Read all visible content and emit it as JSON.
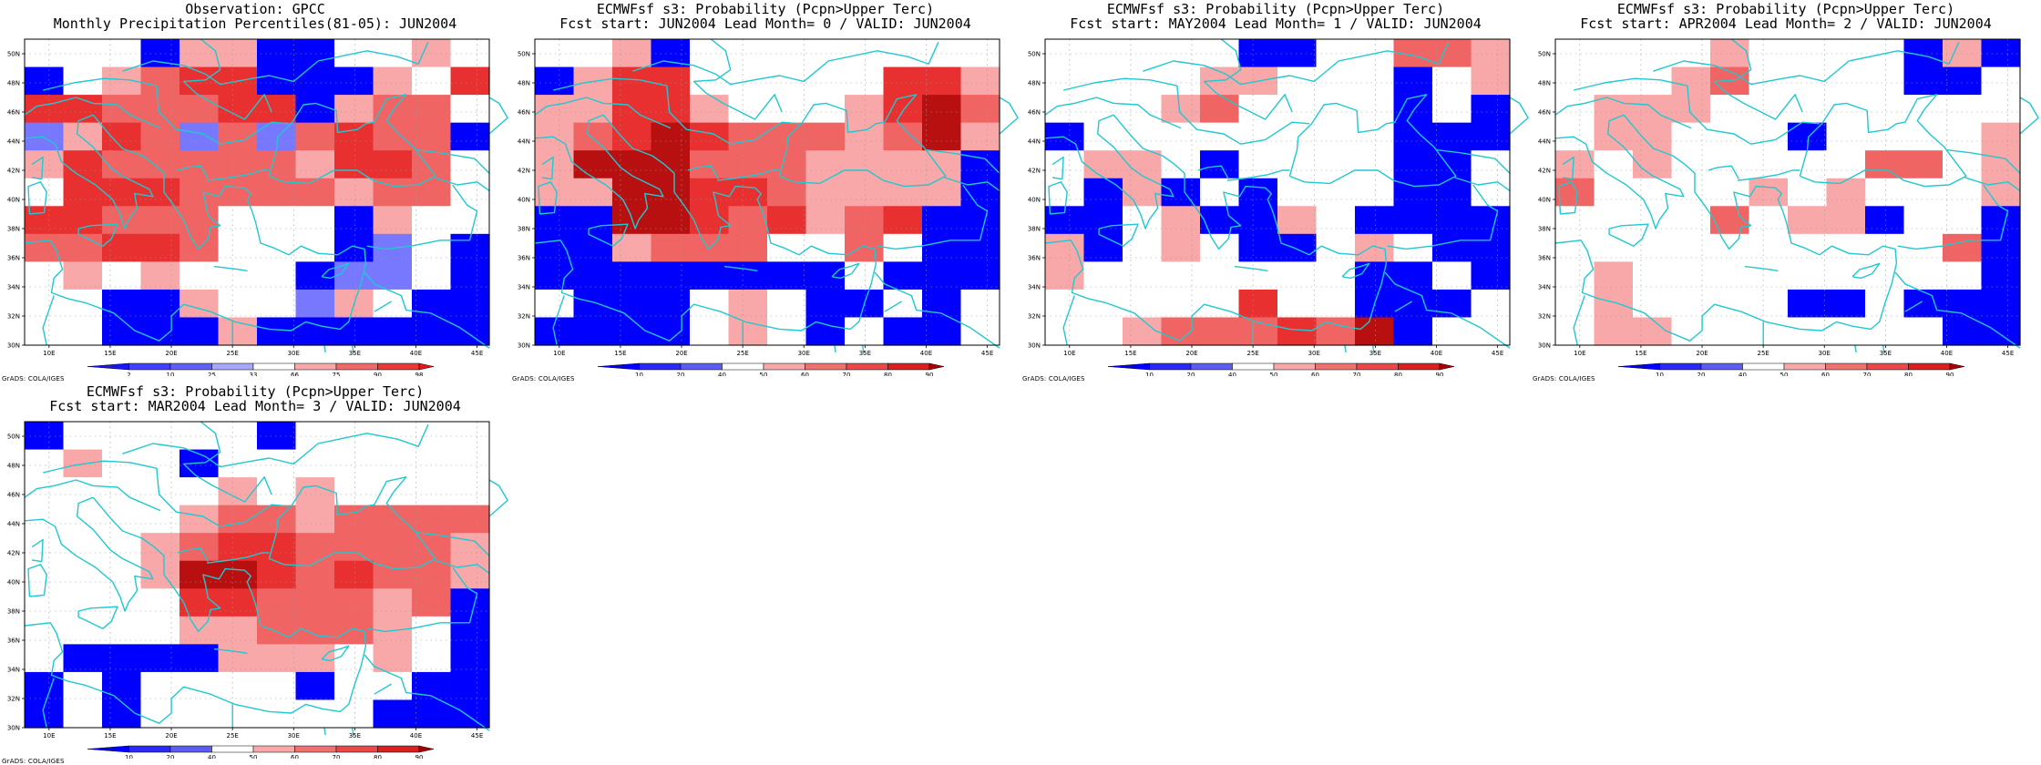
{
  "panels": [
    {
      "title1": "Observation: GPCC",
      "title2": "Monthly Precipitation Percentiles(81-05): JUN2004",
      "colorbar": [
        {
          "color": "#1818f0",
          "label": "2"
        },
        {
          "color": "#4040ff",
          "label": "10"
        },
        {
          "color": "#6060f8",
          "label": "25"
        },
        {
          "color": "#a6a6fa",
          "label": "33"
        },
        {
          "color": "#ffffff",
          "label": "66"
        },
        {
          "color": "#f8a8a8",
          "label": "75"
        },
        {
          "color": "#f06868",
          "label": "90"
        },
        {
          "color": "#e83838",
          "label": "98"
        },
        {
          "color": "#e81818",
          "label": ""
        }
      ],
      "grid": [
        "WWWBLLBBWWLW",
        "BWLRDDBBBLWD",
        "DDRRRDDBLRRW",
        "MLDRMRMRDRRB",
        "LDRRRRRLDDRW",
        "WDDDRRRRLRRW",
        "DDRRRWWWBLWW",
        "RRDDRWWWBMWB",
        "WLWLWWWBMMWB",
        "WWBBLWWMLWBB",
        "WWBBBLBBBBBB"
      ],
      "credit": "GrADS: COLA/IGES"
    },
    {
      "title1": "ECMWFsf s3: Probability (Pcpn>Upper Terc)",
      "title2": "Fcst start: JUN2004  Lead Month= 0 / VALID: JUN2004",
      "colorbar": [
        {
          "color": "#0000ff",
          "label": "10"
        },
        {
          "color": "#2a2af8",
          "label": "20"
        },
        {
          "color": "#5c5cf0",
          "label": "40"
        },
        {
          "color": "#ffffff",
          "label": "50"
        },
        {
          "color": "#f8a8a8",
          "label": "60"
        },
        {
          "color": "#f07070",
          "label": "70"
        },
        {
          "color": "#e84848",
          "label": "80"
        },
        {
          "color": "#d82020",
          "label": "90"
        },
        {
          "color": "#a80000",
          "label": ""
        }
      ],
      "grid": [
        "WWLBWWWWWWWW",
        "BLDDWWWWWDDL",
        "LLDDLWWWLDFR",
        "LRDFDRRRLRFL",
        "LFFFRRRLLLLB",
        "LLFFDDRLLLLB",
        "BBFFDRDLRDBB",
        "BBLRRRWWRWBB",
        "BBBBBBBBWBBB",
        "WBBBWLWBBWBW",
        "BBBBWLWBWBBW"
      ],
      "credit": "GrADS: COLA/IGES"
    },
    {
      "title1": "ECMWFsf s3: Probability (Pcpn>Upper Terc)",
      "title2": "Fcst start: MAY2004  Lead Month= 1 / VALID: JUN2004",
      "colorbar": [
        {
          "color": "#0000ff",
          "label": "10"
        },
        {
          "color": "#2a2af8",
          "label": "20"
        },
        {
          "color": "#5c5cf0",
          "label": "40"
        },
        {
          "color": "#ffffff",
          "label": "50"
        },
        {
          "color": "#f8a8a8",
          "label": "60"
        },
        {
          "color": "#f07070",
          "label": "70"
        },
        {
          "color": "#e84848",
          "label": "80"
        },
        {
          "color": "#d82020",
          "label": "90"
        },
        {
          "color": "#a80000",
          "label": ""
        }
      ],
      "grid": [
        "WWWWWBBWWRRL",
        "WWWWLLWWWBWL",
        "WWWLRWWWWBWB",
        "BWWWWWWWWBBB",
        "WLLWBWWWWBBW",
        "WBLBWBWWWBBW",
        "BBWLBBLWBBBB",
        "LBWLWBBWLWBB",
        "LWWWWWWWBBWB",
        "WWWWWDWWBBBW",
        "WWLRRRDRFBWW"
      ],
      "credit": "GrADS: COLA/IGES"
    },
    {
      "title1": "ECMWFsf s3: Probability (Pcpn>Upper Terc)",
      "title2": "Fcst start: APR2004  Lead Month= 2 / VALID: JUN2004",
      "colorbar": [
        {
          "color": "#0000ff",
          "label": "10"
        },
        {
          "color": "#2a2af8",
          "label": "20"
        },
        {
          "color": "#5c5cf0",
          "label": "40"
        },
        {
          "color": "#ffffff",
          "label": "50"
        },
        {
          "color": "#f8a8a8",
          "label": "60"
        },
        {
          "color": "#f07070",
          "label": "70"
        },
        {
          "color": "#e84848",
          "label": "80"
        },
        {
          "color": "#d82020",
          "label": "90"
        },
        {
          "color": "#a80000",
          "label": ""
        }
      ],
      "grid": [
        "WWWWLWWWWBLB",
        "WWWLRWWWWBBW",
        "WLLLWWWWWWWW",
        "WLLWWWBWWWWL",
        "LWLWWWWWRRWL",
        "RWWWWLWLWWWL",
        "WWWWRWLLBWWB",
        "WWWWWWWWWWRB",
        "WLWWWWWWWWWB",
        "WLWWWWBBWBBB",
        "WLLWWWWWWWBB"
      ],
      "credit": "GrADS: COLA/IGES"
    },
    {
      "title1": "ECMWFsf s3: Probability (Pcpn>Upper Terc)",
      "title2": "Fcst start: MAR2004  Lead Month= 3 / VALID: JUN2004",
      "colorbar": [
        {
          "color": "#0000ff",
          "label": "10"
        },
        {
          "color": "#2a2af8",
          "label": "20"
        },
        {
          "color": "#5c5cf0",
          "label": "40"
        },
        {
          "color": "#ffffff",
          "label": "50"
        },
        {
          "color": "#f8a8a8",
          "label": "60"
        },
        {
          "color": "#f07070",
          "label": "70"
        },
        {
          "color": "#e84848",
          "label": "80"
        },
        {
          "color": "#d82020",
          "label": "90"
        },
        {
          "color": "#a80000",
          "label": ""
        }
      ],
      "grid": [
        "BWWWWWBWWWWW",
        "WLWWBWWWWWWW",
        "WWWWWLWLWWWW",
        "WWWWLRRLRRRR",
        "WWWLRDDRRRRL",
        "WWWLFFDRDRRL",
        "WWWWDDRRRLRB",
        "WWWWLLRRRLWB",
        "WBBBBLLLWLWB",
        "BWBWWWWBWWBB",
        "BWBWWWWWWBBB"
      ],
      "credit": "GrADS: COLA/IGES"
    }
  ],
  "map_colors": {
    "W": "#ffffff",
    "B": "#0000ff",
    "M": "#7878ff",
    "L": "#f8a8a8",
    "R": "#f06464",
    "D": "#e83030",
    "F": "#b81010"
  },
  "coast_color": "#20c8d0",
  "lon_ticks": [
    "10E",
    "15E",
    "20E",
    "25E",
    "30E",
    "35E",
    "40E",
    "45E"
  ],
  "lat_ticks": [
    "30N",
    "32N",
    "34N",
    "36N",
    "38N",
    "40N",
    "42N",
    "44N",
    "46N",
    "48N",
    "50N"
  ]
}
